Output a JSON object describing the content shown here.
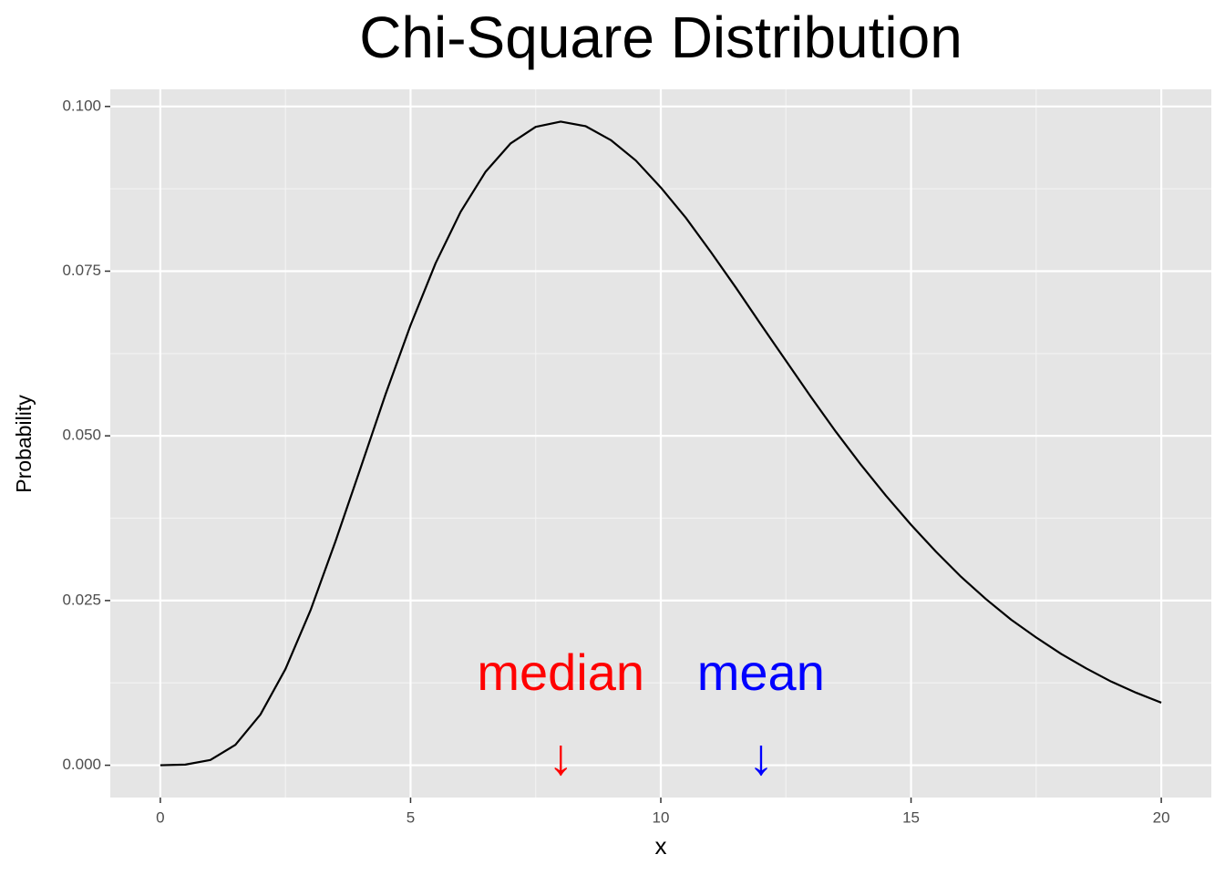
{
  "chart_data": {
    "type": "line",
    "title": "Chi-Square Distribution",
    "x_label": "x",
    "y_label": "Probability",
    "x": [
      0,
      0.5,
      1,
      1.5,
      2,
      2.5,
      3,
      3.5,
      4,
      4.5,
      5,
      5.5,
      6,
      6.5,
      7,
      7.5,
      8,
      8.5,
      9,
      9.5,
      10,
      10.5,
      11,
      11.5,
      12,
      12.5,
      13,
      13.5,
      14,
      14.5,
      15,
      15.5,
      16,
      16.5,
      17,
      17.5,
      18,
      18.5,
      19,
      19.5,
      20
    ],
    "series": [
      {
        "color": "#000000",
        "values": [
          0,
          0.0001,
          0.0008,
          0.0031,
          0.0077,
          0.0146,
          0.0235,
          0.034,
          0.0451,
          0.0563,
          0.0668,
          0.0762,
          0.084,
          0.0901,
          0.0944,
          0.0969,
          0.0977,
          0.097,
          0.0949,
          0.0918,
          0.0877,
          0.0831,
          0.0779,
          0.0725,
          0.0669,
          0.0614,
          0.0559,
          0.0506,
          0.0456,
          0.0409,
          0.0365,
          0.0324,
          0.0286,
          0.0252,
          0.0221,
          0.0194,
          0.0169,
          0.0147,
          0.0127,
          0.011,
          0.0095
        ]
      }
    ],
    "xlim": [
      -1,
      21
    ],
    "ylim": [
      -0.0049,
      0.1026
    ],
    "xticks": [
      0,
      5,
      10,
      15,
      20
    ],
    "yticks": [
      {
        "value": 0,
        "label": "0.000"
      },
      {
        "value": 0.025,
        "label": "0.025"
      },
      {
        "value": 0.05,
        "label": "0.050"
      },
      {
        "value": 0.075,
        "label": "0.075"
      },
      {
        "value": 0.1,
        "label": "0.100"
      }
    ],
    "grid": true,
    "annotations": [
      {
        "text": "median",
        "x": 8,
        "y": 0.0135,
        "color": "#ff0000"
      },
      {
        "text": "mean",
        "x": 12,
        "y": 0.0135,
        "color": "#0000ff"
      },
      {
        "text": "↓",
        "x": 8,
        "y": 0.0007,
        "color": "#ff0000"
      },
      {
        "text": "↓",
        "x": 12,
        "y": 0.0007,
        "color": "#0000ff"
      }
    ]
  }
}
